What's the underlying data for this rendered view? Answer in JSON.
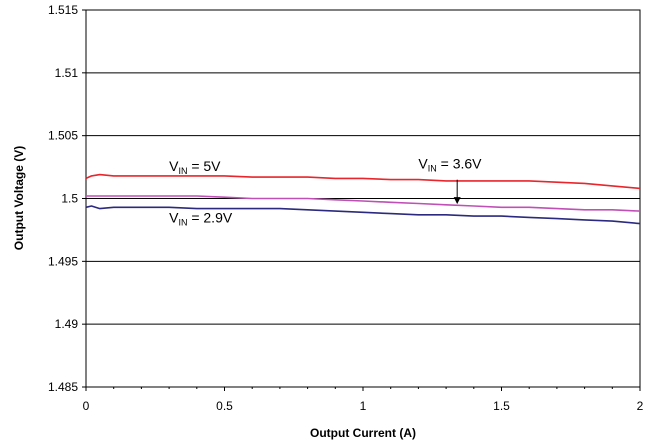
{
  "chart_data": {
    "type": "line",
    "title": "",
    "xlabel": "Output Current (A)",
    "ylabel": "Output Voltage (V)",
    "xlim": [
      0,
      2
    ],
    "ylim": [
      1.485,
      1.515
    ],
    "x_ticks": [
      "0",
      "0.5",
      "1",
      "1.5",
      "2"
    ],
    "y_ticks": [
      "1.485",
      "1.49",
      "1.495",
      "1.5",
      "1.505",
      "1.51",
      "1.515"
    ],
    "grid": "horizontal",
    "series": [
      {
        "color": "#e8262b",
        "x": [
          0,
          0.02,
          0.05,
          0.1,
          0.2,
          0.3,
          0.4,
          0.5,
          0.6,
          0.7,
          0.8,
          0.9,
          1.0,
          1.1,
          1.2,
          1.3,
          1.4,
          1.5,
          1.6,
          1.7,
          1.8,
          1.9,
          2.0
        ],
        "values": [
          1.5016,
          1.5018,
          1.5019,
          1.5018,
          1.5018,
          1.5018,
          1.5018,
          1.5018,
          1.5017,
          1.5017,
          1.5017,
          1.5016,
          1.5016,
          1.5015,
          1.5015,
          1.5014,
          1.5014,
          1.5014,
          1.5014,
          1.5013,
          1.5012,
          1.501,
          1.5008
        ]
      },
      {
        "color": "#c04fb6",
        "x": [
          0,
          0.05,
          0.1,
          0.2,
          0.3,
          0.4,
          0.5,
          0.6,
          0.7,
          0.8,
          0.9,
          1.0,
          1.1,
          1.2,
          1.3,
          1.4,
          1.5,
          1.6,
          1.7,
          1.8,
          1.9,
          2.0
        ],
        "values": [
          1.5002,
          1.5002,
          1.5002,
          1.5002,
          1.5002,
          1.5002,
          1.5001,
          1.5,
          1.5,
          1.5,
          1.4999,
          1.4998,
          1.4997,
          1.4996,
          1.4995,
          1.4994,
          1.4993,
          1.4993,
          1.4992,
          1.4991,
          1.4991,
          1.499
        ]
      },
      {
        "color": "#2b2a7e",
        "x": [
          0,
          0.02,
          0.05,
          0.1,
          0.2,
          0.3,
          0.4,
          0.5,
          0.6,
          0.7,
          0.8,
          0.9,
          1.0,
          1.1,
          1.2,
          1.3,
          1.4,
          1.5,
          1.6,
          1.7,
          1.8,
          1.9,
          2.0
        ],
        "values": [
          1.4993,
          1.4994,
          1.4992,
          1.4993,
          1.4993,
          1.4993,
          1.4992,
          1.4992,
          1.4992,
          1.4992,
          1.4991,
          1.499,
          1.4989,
          1.4988,
          1.4987,
          1.4987,
          1.4986,
          1.4986,
          1.4985,
          1.4984,
          1.4983,
          1.4982,
          1.498
        ]
      }
    ],
    "annotations": [
      {
        "prefix": "V",
        "sub": "IN",
        "text": " = 5V",
        "at": [
          0.3,
          1.5022
        ]
      },
      {
        "prefix": "V",
        "sub": "IN",
        "text": " = 3.6V",
        "at": [
          1.2,
          1.5024
        ]
      },
      {
        "prefix": "V",
        "sub": "IN",
        "text": " = 2.9V",
        "at": [
          0.3,
          1.4981
        ]
      }
    ],
    "arrow": {
      "from": [
        1.34,
        1.5015
      ],
      "to": [
        1.34,
        1.49955
      ]
    }
  }
}
